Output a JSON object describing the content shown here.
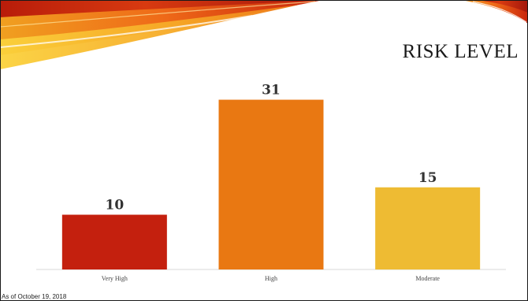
{
  "slide": {
    "title": "RISK LEVEL",
    "footer_note": "As of October 19, 2018"
  },
  "colors": {
    "very_high": "#c4200e",
    "high": "#e97812",
    "moderate": "#eebb33",
    "axis": "#d9d9d9",
    "label": "#333333"
  },
  "chart_data": {
    "type": "bar",
    "categories": [
      "Very High",
      "High",
      "Moderate"
    ],
    "values": [
      10,
      31,
      15
    ],
    "data_labels": [
      "10",
      "31",
      "15"
    ],
    "bar_colors": [
      "#c4200e",
      "#e97812",
      "#eebb33"
    ],
    "title": "",
    "xlabel": "",
    "ylabel": "",
    "ylim": [
      0,
      35
    ],
    "grid": false,
    "legend": "none"
  }
}
